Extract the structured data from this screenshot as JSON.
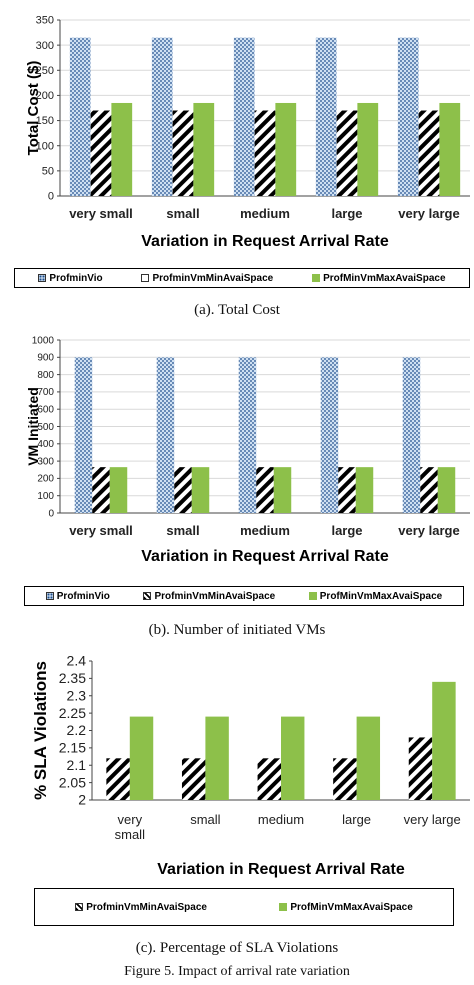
{
  "chart_data": [
    {
      "type": "bar",
      "categories": [
        "very small",
        "small",
        "medium",
        "large",
        "very large"
      ],
      "series": [
        {
          "name": "ProfminVio",
          "values": [
            315,
            315,
            315,
            315,
            315
          ]
        },
        {
          "name": "ProfminVmMinAvaiSpace",
          "values": [
            170,
            170,
            170,
            170,
            170
          ]
        },
        {
          "name": "ProfMinVmMaxAvaiSpace",
          "values": [
            185,
            185,
            185,
            185,
            185
          ]
        }
      ],
      "xlabel": "Variation in Request Arrival Rate",
      "ylabel": "Total Cost ($)",
      "ylim": [
        0,
        350
      ],
      "yticks": [
        "0",
        "50",
        "100",
        "150",
        "200",
        "250",
        "300",
        "350"
      ],
      "grid": true,
      "legend": "bottom",
      "caption": "(a).  Total Cost"
    },
    {
      "type": "bar",
      "categories": [
        "very small",
        "small",
        "medium",
        "large",
        "very large"
      ],
      "series": [
        {
          "name": "ProfminVio",
          "values": [
            900,
            900,
            900,
            900,
            900
          ]
        },
        {
          "name": "ProfminVmMinAvaiSpace",
          "values": [
            265,
            265,
            265,
            265,
            265
          ]
        },
        {
          "name": "ProfMinVmMaxAvaiSpace",
          "values": [
            265,
            265,
            265,
            265,
            265
          ]
        }
      ],
      "xlabel": "Variation in Request Arrival Rate",
      "ylabel": "VM Initiated",
      "ylim": [
        0,
        1000
      ],
      "yticks": [
        "0",
        "100",
        "200",
        "300",
        "400",
        "500",
        "600",
        "700",
        "800",
        "900",
        "1000"
      ],
      "grid": true,
      "legend": "bottom",
      "caption": "(b).  Number of initiated VMs"
    },
    {
      "type": "bar",
      "categories": [
        "very small",
        "small",
        "medium",
        "large",
        "very large"
      ],
      "series": [
        {
          "name": "ProfminVmMinAvaiSpace",
          "values": [
            2.12,
            2.12,
            2.12,
            2.12,
            2.18
          ]
        },
        {
          "name": "ProfMinVmMaxAvaiSpace",
          "values": [
            2.24,
            2.24,
            2.24,
            2.24,
            2.34
          ]
        }
      ],
      "xlabel": "Variation in Request Arrival Rate",
      "ylabel": "% SLA Violations",
      "ylim": [
        2,
        2.4
      ],
      "yticks": [
        "2",
        "2.05",
        "2.1",
        "2.15",
        "2.2",
        "2.25",
        "2.3",
        "2.35",
        "2.4"
      ],
      "grid": false,
      "legend": "bottom",
      "caption": "(c).  Percentage of  SLA Violations"
    }
  ],
  "figure_caption": "Figure 5.   Impact of arrival rate variation",
  "colors": {
    "vio_fill": "#cfe0f2",
    "vio_dot": "#1f4e8c",
    "max_fill": "#8dc04a",
    "min_stripe": "#000000"
  }
}
